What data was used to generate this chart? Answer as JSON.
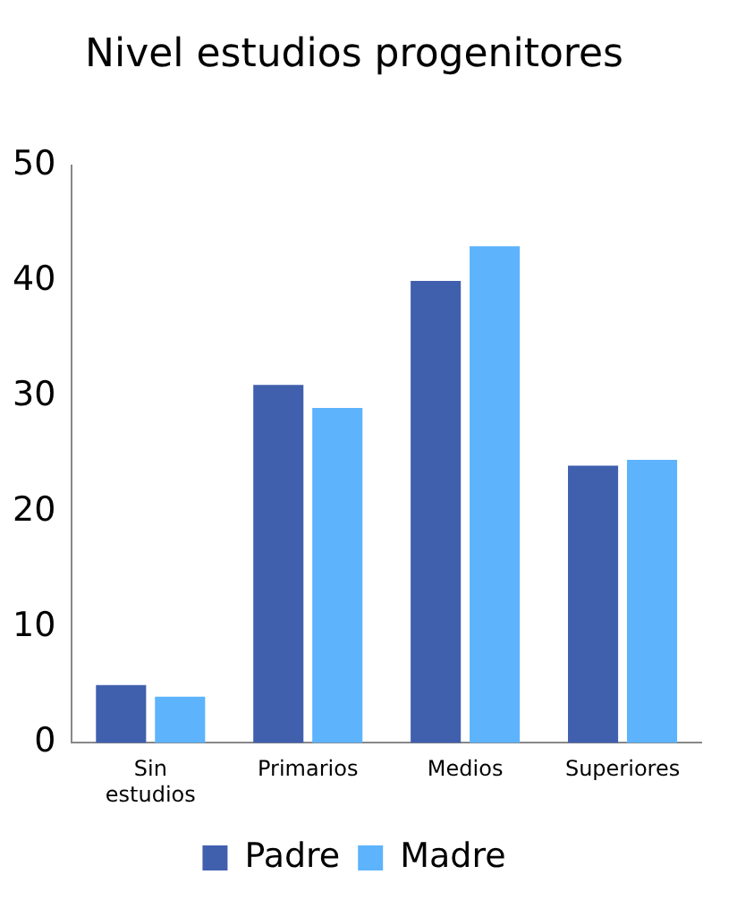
{
  "chart_data": {
    "type": "bar",
    "title": "Nivel estudios progenitores",
    "categories": [
      "Sin estudios",
      "Primarios",
      "Medios",
      "Superiores"
    ],
    "series": [
      {
        "name": "Padre",
        "color": "#4060ae",
        "values": [
          5,
          31,
          40,
          24
        ]
      },
      {
        "name": "Madre",
        "color": "#5db3fc",
        "values": [
          4,
          29,
          43,
          24.5
        ]
      }
    ],
    "ylim": [
      0,
      50
    ],
    "yticks": [
      0,
      10,
      20,
      30,
      40,
      50
    ],
    "grid": false,
    "legend": "bottom"
  }
}
